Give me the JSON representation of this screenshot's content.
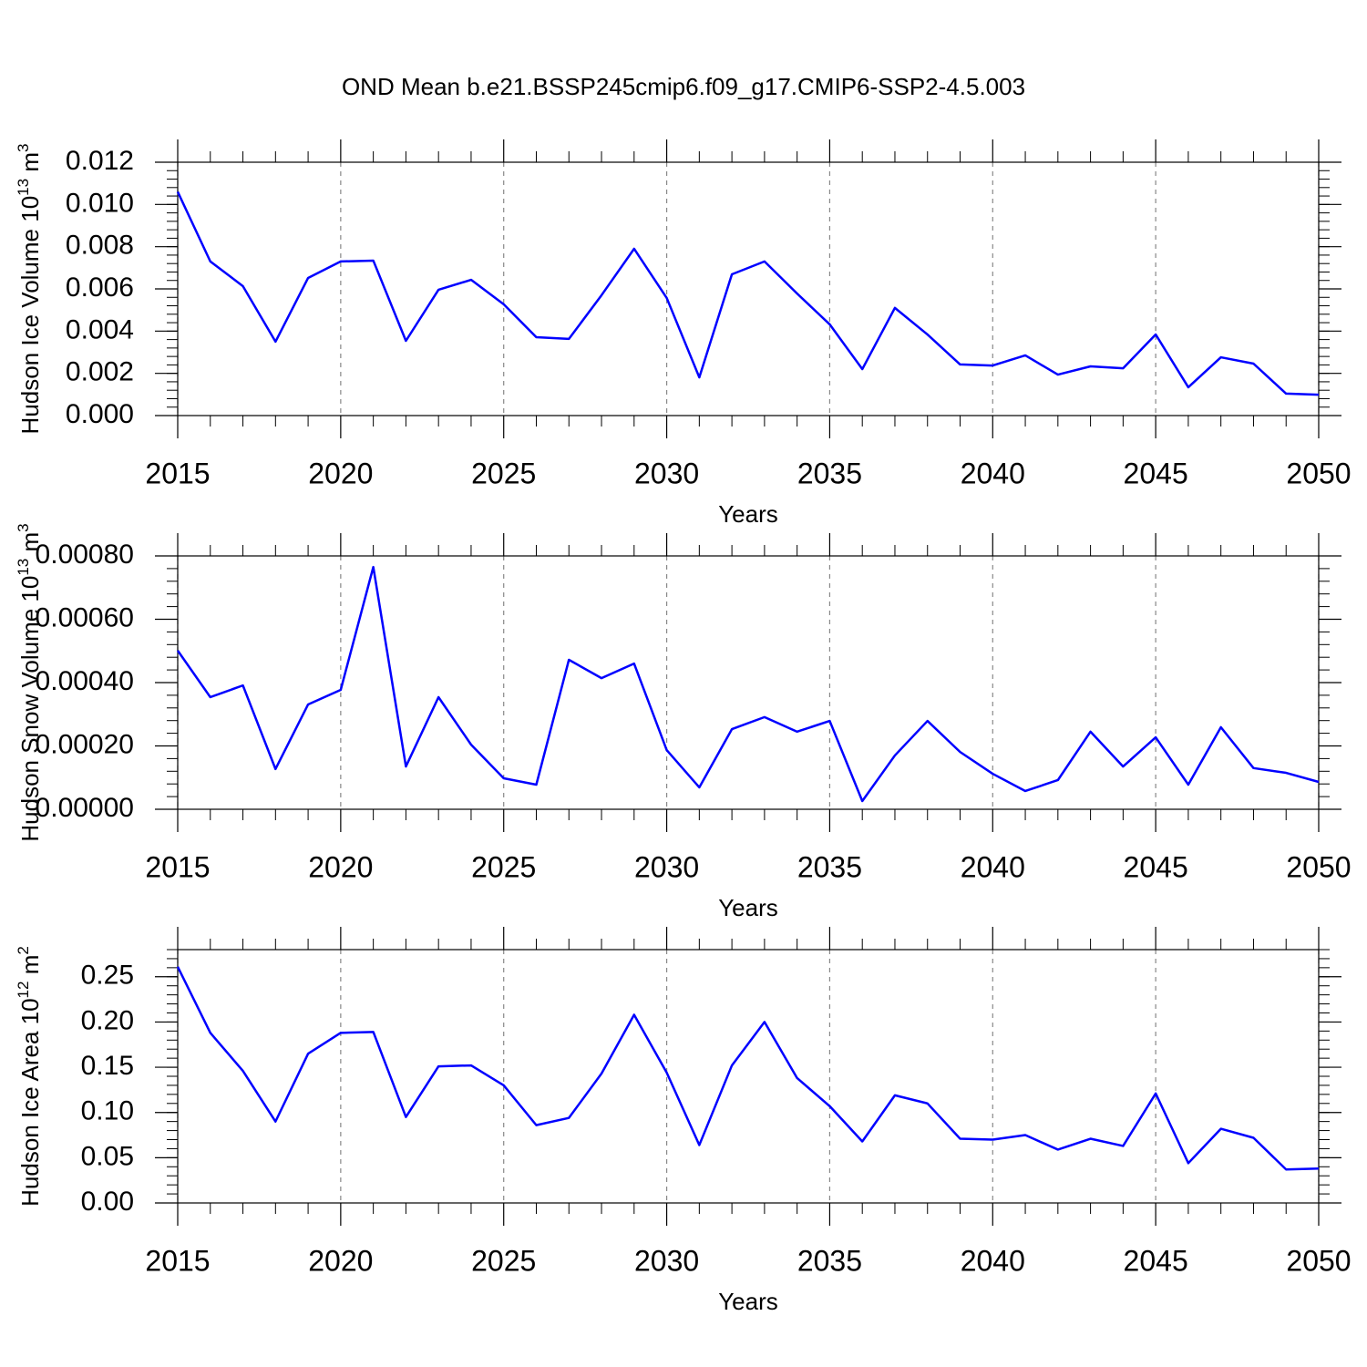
{
  "title": "OND Mean b.e21.BSSP245cmip6.f09_g17.CMIP6-SSP2-4.5.003",
  "chart_data": [
    {
      "type": "line",
      "y_label": [
        "Hudson Ice Volume 10",
        "13",
        " m",
        "3"
      ],
      "x_label": "Years",
      "x": [
        2015,
        2016,
        2017,
        2018,
        2019,
        2020,
        2021,
        2022,
        2023,
        2024,
        2025,
        2026,
        2027,
        2028,
        2029,
        2030,
        2031,
        2032,
        2033,
        2034,
        2035,
        2036,
        2037,
        2038,
        2039,
        2040,
        2041,
        2042,
        2043,
        2044,
        2045,
        2046,
        2047,
        2048,
        2049,
        2050
      ],
      "series": [
        {
          "color": "#0000ff",
          "values": [
            0.0106,
            0.0073,
            0.00613,
            0.0035,
            0.00652,
            0.0073,
            0.00734,
            0.00354,
            0.00596,
            0.00643,
            0.00527,
            0.00371,
            0.00363,
            0.0057,
            0.0079,
            0.00557,
            0.00181,
            0.00669,
            0.0073,
            0.00578,
            0.00432,
            0.0022,
            0.0051,
            0.00384,
            0.00242,
            0.00237,
            0.00285,
            0.00194,
            0.00233,
            0.00224,
            0.00384,
            0.00134,
            0.00276,
            0.00246,
            0.00104,
            0.00099
          ]
        }
      ],
      "xlim": [
        2015,
        2050
      ],
      "xticks": [
        2015,
        2020,
        2025,
        2030,
        2035,
        2040,
        2045,
        2050
      ],
      "ylim": [
        0,
        0.012
      ],
      "yticks": [
        {
          "value": 0,
          "label": "0.000"
        },
        {
          "value": 0.002,
          "label": "0.002"
        },
        {
          "value": 0.004,
          "label": "0.004"
        },
        {
          "value": 0.006,
          "label": "0.006"
        },
        {
          "value": 0.008,
          "label": "0.008"
        },
        {
          "value": 0.01,
          "label": "0.010"
        },
        {
          "value": 0.012,
          "label": "0.012"
        }
      ],
      "grid": true
    },
    {
      "type": "line",
      "y_label": [
        "Hudson Snow Volume 10",
        "13",
        " m",
        "3"
      ],
      "x_label": "Years",
      "x": [
        2015,
        2016,
        2017,
        2018,
        2019,
        2020,
        2021,
        2022,
        2023,
        2024,
        2025,
        2026,
        2027,
        2028,
        2029,
        2030,
        2031,
        2032,
        2033,
        2034,
        2035,
        2036,
        2037,
        2038,
        2039,
        2040,
        2041,
        2042,
        2043,
        2044,
        2045,
        2046,
        2047,
        2048,
        2049,
        2050
      ],
      "series": [
        {
          "color": "#0000ff",
          "values": [
            0.000501,
            0.000354,
            0.000391,
            0.000127,
            0.000331,
            0.000377,
            0.000765,
            0.000135,
            0.000354,
            0.000204,
            9.78e-05,
            7.77e-05,
            0.000472,
            0.000414,
            0.00046,
            0.000187,
            6.91e-05,
            0.000253,
            0.000291,
            0.000245,
            0.000279,
            2.59e-05,
            0.00017,
            0.000279,
            0.000181,
            0.000112,
            5.76e-05,
            9.21e-05,
            0.000245,
            0.000135,
            0.000227,
            7.77e-05,
            0.000259,
            0.00013,
            0.000115,
            8.63e-05
          ]
        }
      ],
      "xlim": [
        2015,
        2050
      ],
      "xticks": [
        2015,
        2020,
        2025,
        2030,
        2035,
        2040,
        2045,
        2050
      ],
      "ylim": [
        0,
        0.0008
      ],
      "yticks": [
        {
          "value": 0,
          "label": "0.00000"
        },
        {
          "value": 0.0002,
          "label": "0.00020"
        },
        {
          "value": 0.0004,
          "label": "0.00040"
        },
        {
          "value": 0.0006,
          "label": "0.00060"
        },
        {
          "value": 0.0008,
          "label": "0.00080"
        }
      ],
      "grid": true
    },
    {
      "type": "line",
      "y_label": [
        "Hudson Ice Area 10",
        "12",
        " m",
        "2"
      ],
      "x_label": "Years",
      "x": [
        2015,
        2016,
        2017,
        2018,
        2019,
        2020,
        2021,
        2022,
        2023,
        2024,
        2025,
        2026,
        2027,
        2028,
        2029,
        2030,
        2031,
        2032,
        2033,
        2034,
        2035,
        2036,
        2037,
        2038,
        2039,
        2040,
        2041,
        2042,
        2043,
        2044,
        2045,
        2046,
        2047,
        2048,
        2049,
        2050
      ],
      "series": [
        {
          "color": "#0000ff",
          "values": [
            0.261,
            0.188,
            0.146,
            0.09,
            0.165,
            0.188,
            0.189,
            0.095,
            0.151,
            0.152,
            0.13,
            0.086,
            0.094,
            0.143,
            0.208,
            0.144,
            0.064,
            0.152,
            0.2,
            0.138,
            0.107,
            0.068,
            0.119,
            0.11,
            0.071,
            0.07,
            0.075,
            0.059,
            0.071,
            0.063,
            0.121,
            0.044,
            0.082,
            0.072,
            0.037,
            0.038
          ]
        }
      ],
      "xlim": [
        2015,
        2050
      ],
      "xticks": [
        2015,
        2020,
        2025,
        2030,
        2035,
        2040,
        2045,
        2050
      ],
      "ylim": [
        0,
        0.28
      ],
      "yticks": [
        {
          "value": 0,
          "label": "0.00"
        },
        {
          "value": 0.05,
          "label": "0.05"
        },
        {
          "value": 0.1,
          "label": "0.10"
        },
        {
          "value": 0.15,
          "label": "0.15"
        },
        {
          "value": 0.2,
          "label": "0.20"
        },
        {
          "value": 0.25,
          "label": "0.25"
        }
      ],
      "grid": true
    }
  ]
}
